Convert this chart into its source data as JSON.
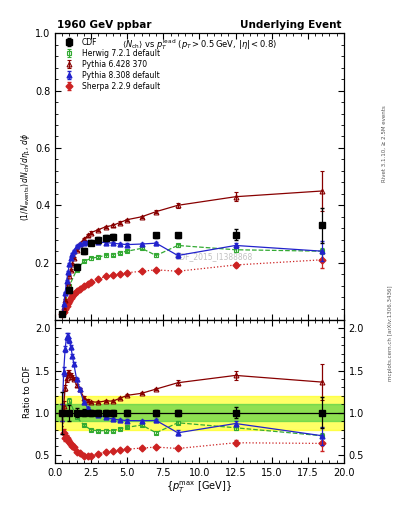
{
  "title_left": "1960 GeV ppbar",
  "title_right": "Underlying Event",
  "plot_title": "<N_{ch}> vs p_{T}^{lead} (p_{T} > 0.5 GeV, |#eta| < 0.8)",
  "watermark": "CDF_2015_I1388868",
  "right_label_top": "Rivet 3.1.10, ≥ 2.5M events",
  "right_label_bot": "mcplots.cern.ch [arXiv:1306.3436]",
  "CDF_x": [
    0.5,
    1.0,
    1.5,
    2.0,
    2.5,
    3.0,
    3.5,
    4.0,
    5.0,
    7.0,
    8.5,
    12.5,
    18.5
  ],
  "CDF_y": [
    0.02,
    0.105,
    0.185,
    0.24,
    0.27,
    0.28,
    0.285,
    0.29,
    0.29,
    0.295,
    0.295,
    0.298,
    0.33
  ],
  "CDF_yerr": [
    0.005,
    0.01,
    0.01,
    0.01,
    0.01,
    0.01,
    0.01,
    0.01,
    0.01,
    0.01,
    0.01,
    0.02,
    0.06
  ],
  "Herwig_x": [
    0.5,
    1.0,
    1.5,
    2.0,
    2.5,
    3.0,
    3.5,
    4.0,
    4.5,
    5.0,
    6.0,
    7.0,
    8.5,
    12.5,
    18.5
  ],
  "Herwig_y": [
    0.02,
    0.12,
    0.175,
    0.205,
    0.215,
    0.22,
    0.225,
    0.228,
    0.235,
    0.24,
    0.25,
    0.225,
    0.26,
    0.245,
    0.24
  ],
  "Herwig_yerr": [
    0.002,
    0.004,
    0.004,
    0.004,
    0.004,
    0.004,
    0.004,
    0.004,
    0.004,
    0.004,
    0.004,
    0.006,
    0.006,
    0.008,
    0.01
  ],
  "Pythia6_x": [
    0.5,
    0.6,
    0.7,
    0.8,
    0.9,
    1.0,
    1.1,
    1.2,
    1.3,
    1.5,
    1.7,
    2.0,
    2.3,
    2.5,
    3.0,
    3.5,
    4.0,
    4.5,
    5.0,
    6.0,
    7.0,
    8.5,
    12.5,
    18.5
  ],
  "Pythia6_y": [
    0.02,
    0.04,
    0.07,
    0.1,
    0.13,
    0.155,
    0.175,
    0.195,
    0.215,
    0.245,
    0.265,
    0.283,
    0.295,
    0.305,
    0.315,
    0.325,
    0.33,
    0.34,
    0.35,
    0.36,
    0.378,
    0.4,
    0.43,
    0.45
  ],
  "Pythia6_yerr": [
    0.002,
    0.002,
    0.002,
    0.003,
    0.003,
    0.003,
    0.003,
    0.003,
    0.003,
    0.003,
    0.004,
    0.004,
    0.004,
    0.004,
    0.004,
    0.004,
    0.004,
    0.004,
    0.004,
    0.004,
    0.005,
    0.008,
    0.015,
    0.07
  ],
  "Pythia8_x": [
    0.5,
    0.6,
    0.7,
    0.8,
    0.9,
    1.0,
    1.1,
    1.2,
    1.3,
    1.5,
    1.7,
    2.0,
    2.3,
    2.5,
    3.0,
    3.5,
    4.0,
    4.5,
    5.0,
    6.0,
    7.0,
    8.5,
    12.5,
    18.5
  ],
  "Pythia8_y": [
    0.02,
    0.055,
    0.095,
    0.135,
    0.168,
    0.195,
    0.215,
    0.23,
    0.242,
    0.258,
    0.265,
    0.27,
    0.272,
    0.272,
    0.272,
    0.27,
    0.268,
    0.265,
    0.263,
    0.265,
    0.268,
    0.225,
    0.26,
    0.24
  ],
  "Pythia8_yerr": [
    0.002,
    0.002,
    0.002,
    0.003,
    0.003,
    0.003,
    0.003,
    0.003,
    0.003,
    0.003,
    0.004,
    0.004,
    0.004,
    0.004,
    0.004,
    0.004,
    0.004,
    0.004,
    0.004,
    0.004,
    0.005,
    0.008,
    0.01,
    0.035
  ],
  "Sherpa_x": [
    0.5,
    0.6,
    0.7,
    0.8,
    0.9,
    1.0,
    1.1,
    1.2,
    1.3,
    1.5,
    1.7,
    2.0,
    2.3,
    2.5,
    3.0,
    3.5,
    4.0,
    4.5,
    5.0,
    6.0,
    7.0,
    8.5,
    12.5,
    18.5
  ],
  "Sherpa_y": [
    0.02,
    0.028,
    0.038,
    0.05,
    0.06,
    0.068,
    0.076,
    0.083,
    0.09,
    0.1,
    0.108,
    0.118,
    0.125,
    0.132,
    0.143,
    0.152,
    0.157,
    0.162,
    0.165,
    0.17,
    0.175,
    0.17,
    0.192,
    0.21
  ],
  "Sherpa_yerr": [
    0.002,
    0.002,
    0.002,
    0.002,
    0.002,
    0.002,
    0.002,
    0.002,
    0.002,
    0.002,
    0.002,
    0.002,
    0.002,
    0.002,
    0.002,
    0.002,
    0.002,
    0.002,
    0.002,
    0.002,
    0.003,
    0.004,
    0.008,
    0.03
  ],
  "ylim_main": [
    0.0,
    1.0
  ],
  "ylim_ratio": [
    0.4,
    2.1
  ],
  "xlim": [
    0.0,
    20.0
  ],
  "yticks_main": [
    0.2,
    0.4,
    0.6,
    0.8,
    1.0
  ],
  "yticks_ratio": [
    0.5,
    1.0,
    1.5,
    2.0
  ],
  "color_CDF": "#000000",
  "color_Herwig": "#33aa33",
  "color_Pythia6": "#880000",
  "color_Pythia8": "#2222cc",
  "color_Sherpa": "#cc2222",
  "band_yellow": [
    0.8,
    1.2
  ],
  "band_green": [
    0.9,
    1.1
  ]
}
